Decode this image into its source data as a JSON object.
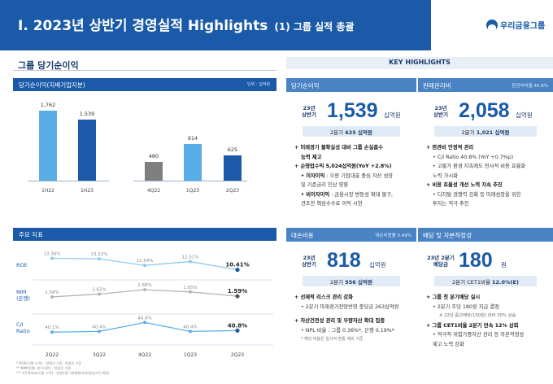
{
  "header": {
    "title": "I. 2023년 상반기 경영실적 Highlights",
    "subtitle": "(1) 그룹 실적 총괄",
    "logo_text": "우리금융그룹"
  },
  "left": {
    "section_title": "그룹 당기순이익",
    "net_income_panel": {
      "title": "당기순이익(지배기업지분)",
      "unit": "단위 : 십억원"
    },
    "indicators_panel": {
      "title": "주요 지표"
    },
    "row_labels": {
      "roe": "ROE",
      "nim": "NIM\n(은행)",
      "ci": "C/I\nRatio"
    },
    "footnotes": [
      "* ROE(기말 누적) : 연환산 기준, 연말은 기준",
      "** NIM(은행, 분기기준) : 연환산 기준",
      "*** C/I Ratio(기중 누적) : 연결기준 (판매관리비/영업이익 계정)"
    ]
  },
  "chart_data": [
    {
      "type": "bar",
      "title": "당기순이익(지배기업지분)",
      "unit": "단위 : 십억원",
      "categories": [
        "1H22",
        "1H23",
        "4Q22",
        "1Q23",
        "2Q23"
      ],
      "values": [
        1762,
        1539,
        480,
        914,
        625
      ],
      "labels": [
        "1,762",
        "1,539",
        "480",
        "914",
        "625"
      ],
      "colors": [
        "#5aaee8",
        "#1a5aa8",
        "#7f7f7f",
        "#5aaee8",
        "#1a5aa8"
      ]
    },
    {
      "type": "line",
      "title": "주요 지표",
      "categories": [
        "2Q22",
        "3Q22",
        "4Q22",
        "1Q23",
        "2Q23"
      ],
      "series": [
        {
          "name": "ROE",
          "values": [
            13.36,
            13.22,
            11.54,
            12.51,
            10.41
          ],
          "labels": [
            "13.36%",
            "13.22%",
            "11.54%",
            "12.51%",
            "10.41%"
          ]
        },
        {
          "name": "NIM (은행)",
          "values": [
            1.58,
            1.62,
            1.68,
            1.65,
            1.59
          ],
          "labels": [
            "1.58%",
            "1.62%",
            "1.68%",
            "1.65%",
            "1.59%"
          ]
        },
        {
          "name": "C/I Ratio",
          "values": [
            40.1,
            40.4,
            44.4,
            40.4,
            40.8
          ],
          "labels": [
            "40.1%",
            "40.4%",
            "44.4%",
            "40.4%",
            "40.8%"
          ]
        }
      ]
    }
  ],
  "key_highlights": {
    "title": "KEY HIGHLIGHTS",
    "cards": [
      {
        "head": "당기순이익",
        "note": "",
        "period": [
          "23년",
          "상반기"
        ],
        "value": "1,539",
        "unit": "십억원",
        "sub_label": "2분기",
        "sub_value": "625 십억원",
        "lines": [
          {
            "level": "b1",
            "text": "+ 미래경기 불확실성 대비 그룹 손실흡수"
          },
          {
            "level": "b1i",
            "text": "능력 제고"
          },
          {
            "level": "b1",
            "text": "+ 순영업수익 5,024십억원(YoY +2.8%)"
          },
          {
            "level": "b2s",
            "label": "• 이자이익",
            "text": " : 우량 기업대출 중심 자산 성장"
          },
          {
            "level": "b2",
            "text": "및 기준금리 인상 영향"
          },
          {
            "level": "b2s",
            "label": "• 비이자이익",
            "text": " : 금융시장 변동성 확대 불구,"
          },
          {
            "level": "b2",
            "text": "견조한 핵심수수료 이익 시현"
          }
        ]
      },
      {
        "head": "판매관리비",
        "note": "판관비비율 40.8%",
        "period": [
          "23년",
          "상반기"
        ],
        "value": "2,058",
        "unit": "십억원",
        "sub_label": "2분기",
        "sub_value": "1,021 십억원",
        "lines": [
          {
            "level": "b1",
            "text": "+ 판관비 안정적 관리"
          },
          {
            "level": "b2",
            "text": "• C/I Ratio 40.8% (YoY +0.7%p)"
          },
          {
            "level": "b2",
            "text": "• 고물가 환경 지속에도 전사적 비용 효율화"
          },
          {
            "level": "b2",
            "text": "  노력 가시화"
          },
          {
            "level": "b1",
            "text": "+ 비용 효율성 개선 노력 지속 추진"
          },
          {
            "level": "b2",
            "text": "• 디지털 경쟁력 강화 등 미래성장을 위한"
          },
          {
            "level": "b2",
            "text": "  투자는 적극 추진"
          }
        ]
      },
      {
        "head": "대손비용",
        "note": "대손비용률 0.49%",
        "period": [
          "23년",
          "상반기"
        ],
        "value": "818",
        "unit": "십억원",
        "sub_label": "2분기",
        "sub_value": "556 십억원",
        "lines": [
          {
            "level": "b1",
            "text": "+ 선제적 리스크 관리 강화"
          },
          {
            "level": "b2",
            "text": "• 2분기 미래경기전망반영 충당금 263십억원"
          },
          {
            "level": "gap",
            "text": ""
          },
          {
            "level": "b1",
            "text": "+ 자산건전성 관리 및 우량자산 확대 집중"
          },
          {
            "level": "b2",
            "text": "• NPL 비율 : 그룹 0.36%*, 은행 0.19%*"
          },
          {
            "level": "small",
            "text": "* 해당 비율은 일시적 변동 제외 기준"
          }
        ]
      },
      {
        "head": "배당 및 자본적정성",
        "note": "",
        "period": [
          "23년 2분기",
          "배당금"
        ],
        "value": "180",
        "unit": "원",
        "sub_label": "2분기 CET1비율",
        "sub_value": "12.0%(E)",
        "lines": [
          {
            "level": "b1",
            "text": "+ 그룹 첫 분기배당 실시"
          },
          {
            "level": "b2",
            "text": "• 2분기 주당 180원 지급 결정"
          },
          {
            "level": "b3",
            "text": "※ 22년 중간배당(150원) 대비 20% 상승"
          },
          {
            "level": "b1",
            "text": "+ 그룹 CET1비율 2분기 연속 12% 상회"
          },
          {
            "level": "b2",
            "text": "• 적극적 위험가중자산 관리 등 자본적정성"
          },
          {
            "level": "b2",
            "text": "  제고 노력 강화"
          }
        ]
      }
    ]
  }
}
